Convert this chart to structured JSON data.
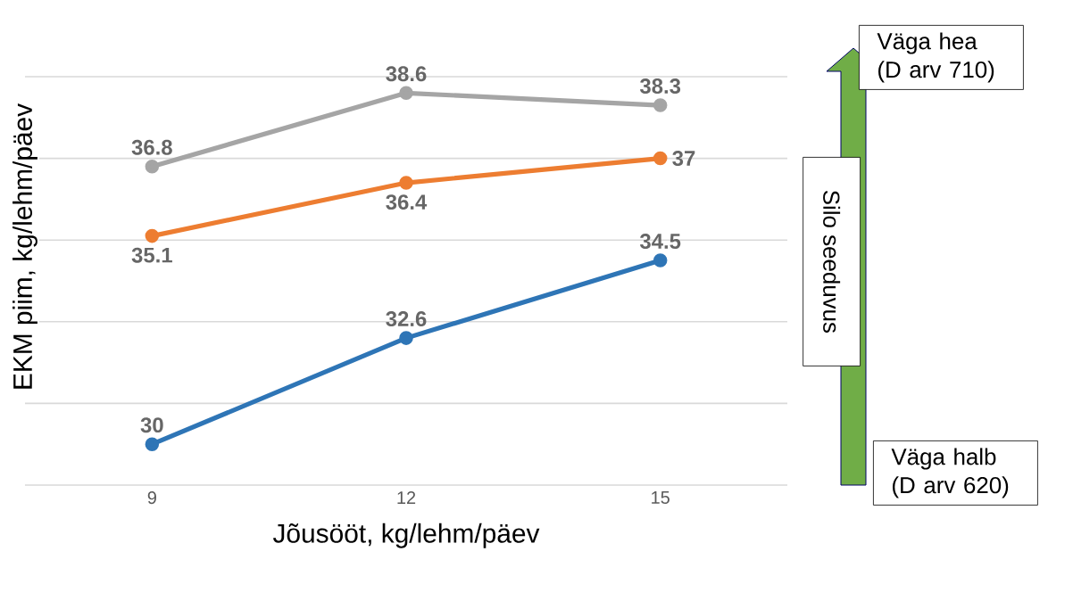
{
  "chart_data": {
    "type": "line",
    "xlabel": "Jõusööt, kg/lehm/päev",
    "ylabel": "EKM piim, kg/lehm/päev",
    "categories": [
      "9",
      "12",
      "15"
    ],
    "series": [
      {
        "color": "#2e75b6",
        "values": [
          30,
          32.6,
          34.5
        ]
      },
      {
        "color": "#ed7d31",
        "values": [
          35.1,
          36.4,
          37
        ]
      },
      {
        "color": "#a5a5a5",
        "values": [
          36.8,
          38.6,
          38.3
        ]
      }
    ],
    "ylim": [
      29,
      39
    ],
    "yticks": [
      {
        "value": 29,
        "label": null
      },
      {
        "value": 31,
        "label": null
      },
      {
        "value": 33,
        "label": null
      },
      {
        "value": 35,
        "label": null
      },
      {
        "value": 37,
        "label": null
      },
      {
        "value": 39,
        "label": null
      }
    ],
    "tick_labels": "x",
    "grid": "y",
    "marker": "circle",
    "data_labels": true,
    "annotations": [
      "Väga hea (D arv 710)",
      "Silo seeduvus",
      "Väga halb (D arv 620)"
    ]
  }
}
